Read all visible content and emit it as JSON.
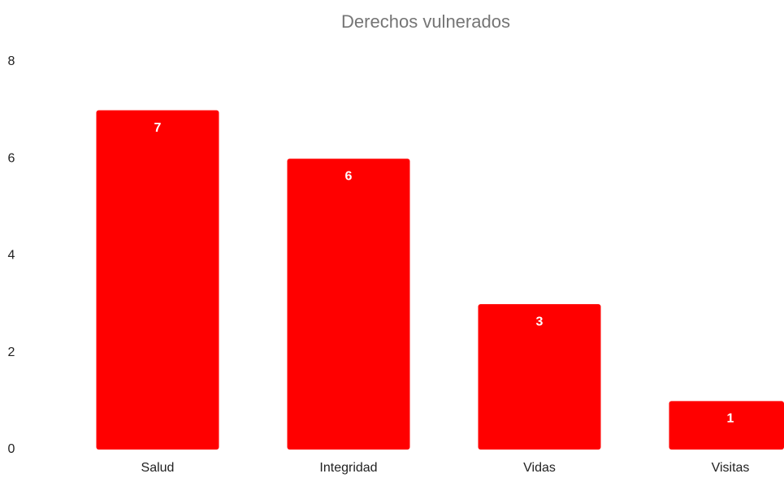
{
  "chart_data": {
    "type": "bar",
    "title": "Derechos vulnerados",
    "categories": [
      "Salud",
      "Integridad",
      "Vidas",
      "Visitas"
    ],
    "values": [
      7,
      6,
      3,
      1
    ],
    "color": "#ff0000",
    "ylim": [
      0,
      8
    ],
    "yticks": [
      0,
      2,
      4,
      6,
      8
    ],
    "grid": false
  }
}
